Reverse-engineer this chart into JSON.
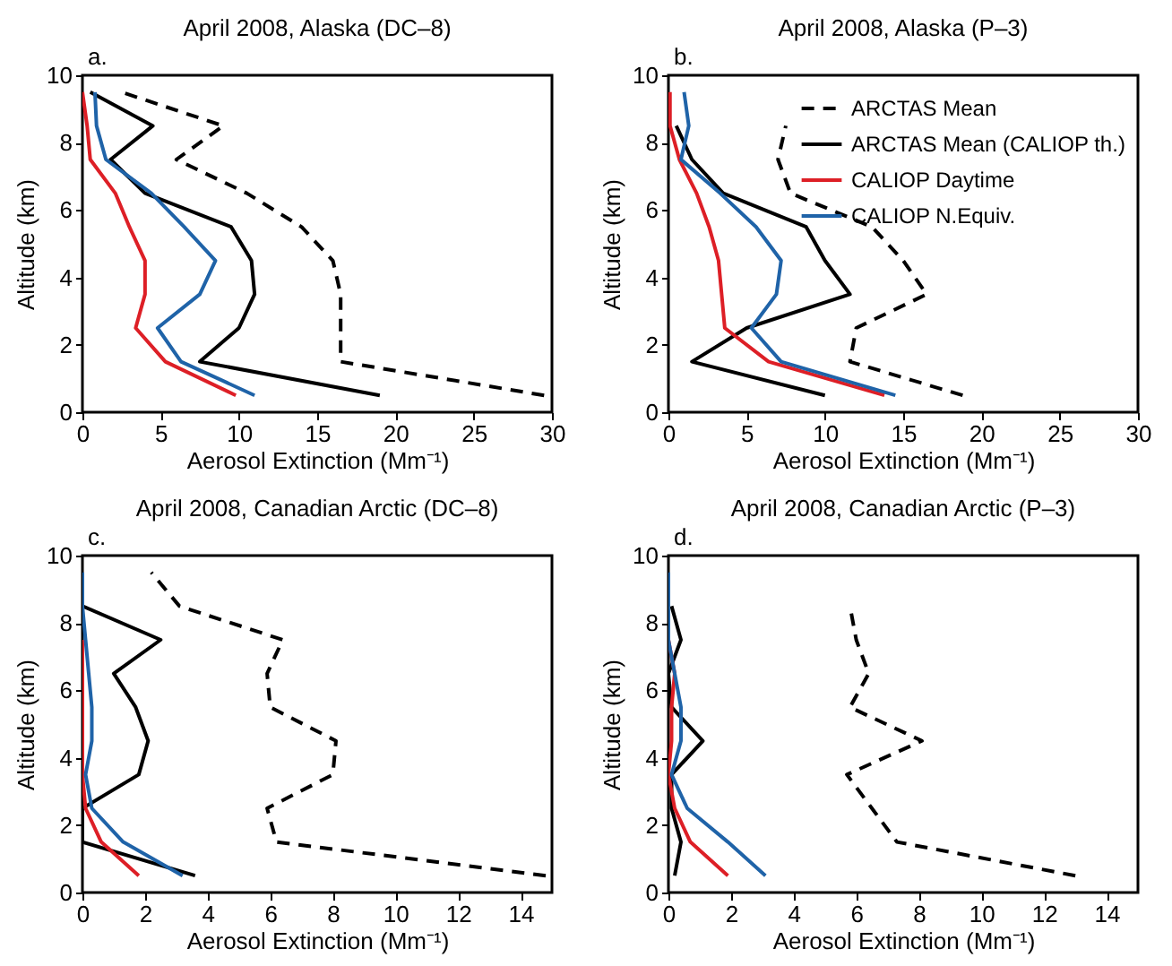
{
  "chart_data": [
    {
      "type": "line",
      "title": "April 2008, Alaska (DC–8)",
      "annotations": [
        "a."
      ],
      "xlabel": "Aerosol Extinction (Mm⁻¹)",
      "ylabel": "Altitude (km)",
      "xlim": [
        0,
        30
      ],
      "xticks": [
        0,
        5,
        10,
        15,
        20,
        25,
        30
      ],
      "ylim": [
        0,
        10
      ],
      "yticks": [
        0,
        2,
        4,
        6,
        8,
        10
      ],
      "grid": false,
      "legend": false,
      "series": [
        {
          "color": "#000000",
          "line_style": "dashed",
          "x": [
            29.5,
            16.5,
            16.5,
            16.5,
            16,
            14,
            10.5,
            6,
            9,
            2.5
          ],
          "values": [
            0.5,
            1.5,
            2.5,
            3.5,
            4.5,
            5.5,
            6.5,
            7.5,
            8.5,
            9.5
          ]
        },
        {
          "color": "#000000",
          "line_style": "solid",
          "x": [
            19,
            7.5,
            10,
            11,
            10.8,
            9.5,
            4,
            1.8,
            4.5,
            0.5
          ],
          "values": [
            0.5,
            1.5,
            2.5,
            3.5,
            4.5,
            5.5,
            6.5,
            7.5,
            8.5,
            9.5
          ]
        },
        {
          "color": "#dd1f26",
          "line_style": "solid",
          "x": [
            9.8,
            5.3,
            3.4,
            4,
            4,
            3,
            2.1,
            0.5,
            0.3,
            0
          ],
          "values": [
            0.5,
            1.5,
            2.5,
            3.5,
            4.5,
            5.5,
            6.5,
            7.5,
            8.5,
            9.5
          ]
        },
        {
          "color": "#1f63a8",
          "line_style": "solid",
          "x": [
            11,
            6.3,
            4.8,
            7.5,
            8.5,
            6.5,
            4.4,
            1.5,
            0.9,
            0.8
          ],
          "values": [
            0.5,
            1.5,
            2.5,
            3.5,
            4.5,
            5.5,
            6.5,
            7.5,
            8.5,
            9.5
          ]
        }
      ]
    },
    {
      "type": "line",
      "title": "April 2008, Alaska (P–3)",
      "annotations": [
        "b."
      ],
      "xlabel": "Aerosol Extinction (Mm⁻¹)",
      "ylabel": "Altitude (km)",
      "xlim": [
        0,
        30
      ],
      "xticks": [
        0,
        5,
        10,
        15,
        20,
        25,
        30
      ],
      "ylim": [
        0,
        10
      ],
      "yticks": [
        0,
        2,
        4,
        6,
        8,
        10
      ],
      "grid": false,
      "legend": "top right",
      "series": [
        {
          "name": "ARCTAS Mean",
          "color": "#000000",
          "line_style": "dashed",
          "x": [
            18.8,
            11.6,
            12,
            16.5,
            15,
            13,
            7.8,
            7,
            7.5
          ],
          "values": [
            0.5,
            1.5,
            2.5,
            3.5,
            4.5,
            5.5,
            6.5,
            7.5,
            8.5
          ]
        },
        {
          "name": "ARCTAS Mean (CALIOP th.)",
          "color": "#000000",
          "line_style": "solid",
          "x": [
            10,
            1.5,
            5,
            11.6,
            10,
            8.8,
            3.5,
            1.5,
            0.5
          ],
          "values": [
            0.5,
            1.5,
            2.5,
            3.5,
            4.5,
            5.5,
            6.5,
            7.5,
            8.5
          ]
        },
        {
          "name": "CALIOP Daytime",
          "color": "#dd1f26",
          "line_style": "solid",
          "x": [
            13.8,
            6.4,
            3.6,
            3.4,
            3.2,
            2.6,
            1.8,
            0.7,
            0.1,
            0.1
          ],
          "values": [
            0.5,
            1.5,
            2.5,
            3.5,
            4.5,
            5.5,
            6.5,
            7.5,
            8.5,
            9.5
          ]
        },
        {
          "name": "CALIOP N.Equiv.",
          "color": "#1f63a8",
          "line_style": "solid",
          "x": [
            14.5,
            7.2,
            5.3,
            6.9,
            7.2,
            5.6,
            3.3,
            0.8,
            1.3,
            1
          ],
          "values": [
            0.5,
            1.5,
            2.5,
            3.5,
            4.5,
            5.5,
            6.5,
            7.5,
            8.5,
            9.5
          ]
        }
      ]
    },
    {
      "type": "line",
      "title": "April 2008, Canadian Arctic (DC–8)",
      "annotations": [
        "c."
      ],
      "xlabel": "Aerosol Extinction (Mm⁻¹)",
      "ylabel": "Altitude (km)",
      "xlim": [
        0,
        15
      ],
      "xticks": [
        0,
        2,
        4,
        6,
        8,
        10,
        12,
        14
      ],
      "ylim": [
        0,
        10
      ],
      "yticks": [
        0,
        2,
        4,
        6,
        8,
        10
      ],
      "grid": false,
      "legend": false,
      "series": [
        {
          "color": "#000000",
          "line_style": "dashed",
          "x": [
            14.8,
            6.2,
            5.9,
            8,
            8.1,
            6,
            5.9,
            6.4,
            3.1,
            2.2
          ],
          "values": [
            0.5,
            1.5,
            2.5,
            3.5,
            4.5,
            5.5,
            6.5,
            7.5,
            8.5,
            9.5
          ]
        },
        {
          "color": "#000000",
          "line_style": "solid",
          "x": [
            3.6,
            0,
            0,
            1.8,
            2.1,
            1.7,
            1,
            2.5,
            0
          ],
          "values": [
            0.5,
            1.5,
            2.5,
            3.5,
            4.5,
            5.5,
            6.5,
            7.5,
            8.5
          ]
        },
        {
          "color": "#dd1f26",
          "line_style": "solid",
          "x": [
            1.8,
            0.6,
            0.1,
            0,
            0,
            0,
            0,
            0
          ],
          "values": [
            0.5,
            1.5,
            2.5,
            3.5,
            4.5,
            5.5,
            6.5,
            7.5
          ]
        },
        {
          "color": "#1f63a8",
          "line_style": "solid",
          "x": [
            3.2,
            1.3,
            0.3,
            0.1,
            0.3,
            0.3,
            0.2,
            0.1,
            0,
            0
          ],
          "values": [
            0.5,
            1.5,
            2.5,
            3.5,
            4.5,
            5.5,
            6.5,
            7.5,
            8.5,
            9.5
          ]
        }
      ]
    },
    {
      "type": "line",
      "title": "April 2008, Canadian Arctic (P–3)",
      "annotations": [
        "d."
      ],
      "xlabel": "Aerosol Extinction (Mm⁻¹)",
      "ylabel": "Altitude (km)",
      "xlim": [
        0,
        15
      ],
      "xticks": [
        0,
        2,
        4,
        6,
        8,
        10,
        12,
        14
      ],
      "ylim": [
        0,
        10
      ],
      "yticks": [
        0,
        2,
        4,
        6,
        8,
        10
      ],
      "grid": false,
      "legend": false,
      "series": [
        {
          "color": "#000000",
          "line_style": "dashed",
          "x": [
            13,
            7.3,
            6.5,
            5.7,
            8.1,
            5.8,
            6.4,
            6,
            5.8
          ],
          "values": [
            0.5,
            1.5,
            2.5,
            3.5,
            4.5,
            5.5,
            6.5,
            7.5,
            8.5
          ]
        },
        {
          "color": "#000000",
          "line_style": "solid",
          "x": [
            0.2,
            0.4,
            0.1,
            0.1,
            1.1,
            0.1,
            0,
            0.4,
            0.1
          ],
          "values": [
            0.5,
            1.5,
            2.5,
            3.5,
            4.5,
            5.5,
            6.5,
            7.5,
            8.5
          ]
        },
        {
          "color": "#dd1f26",
          "line_style": "solid",
          "x": [
            1.9,
            0.7,
            0.2,
            0,
            0.1,
            0.1,
            0.2,
            0
          ],
          "values": [
            0.5,
            1.5,
            2.5,
            3.5,
            4.5,
            5.5,
            6.5,
            7.5
          ]
        },
        {
          "color": "#1f63a8",
          "line_style": "solid",
          "x": [
            3.1,
            1.9,
            0.6,
            0.1,
            0.4,
            0.4,
            0.2,
            0,
            0,
            0
          ],
          "values": [
            0.5,
            1.5,
            2.5,
            3.5,
            4.5,
            5.5,
            6.5,
            7.5,
            8.5,
            9.5
          ]
        }
      ]
    }
  ]
}
